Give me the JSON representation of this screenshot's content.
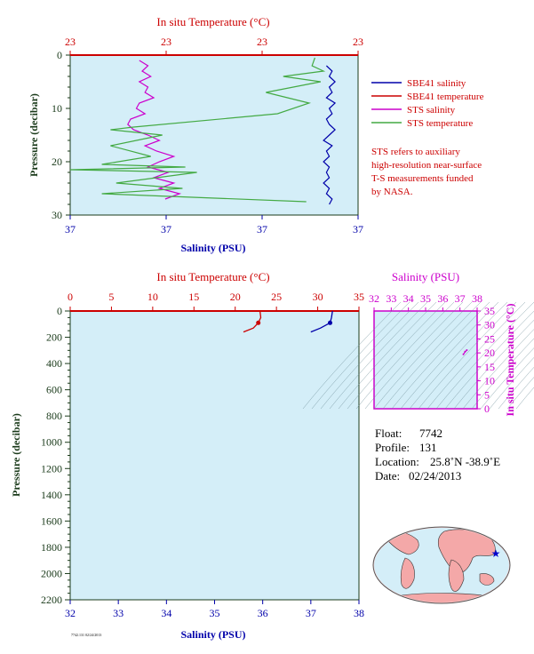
{
  "chart_data": [
    {
      "type": "line",
      "x_top_label": "In situ Temperature (°C)",
      "x_top_ticks": [
        "23",
        "23",
        "23",
        "23"
      ],
      "x_bottom_label": "Salinity (PSU)",
      "x_bottom_ticks": [
        "37",
        "37",
        "37",
        "37"
      ],
      "ylabel": "Pressure (decibar)",
      "y_ticks": [
        0,
        10,
        20,
        30
      ],
      "ylim": [
        0,
        30
      ],
      "grid": false,
      "legend_placement": "right",
      "series": [
        {
          "name": "SBE41 salinity",
          "color": "#0000aa",
          "points": [
            [
              0.89,
              2
            ],
            [
              0.91,
              3
            ],
            [
              0.9,
              4
            ],
            [
              0.92,
              5
            ],
            [
              0.9,
              6
            ],
            [
              0.91,
              7
            ],
            [
              0.89,
              8
            ],
            [
              0.92,
              9
            ],
            [
              0.9,
              10
            ],
            [
              0.91,
              11
            ],
            [
              0.89,
              12
            ],
            [
              0.9,
              13
            ],
            [
              0.92,
              14
            ],
            [
              0.9,
              15
            ],
            [
              0.88,
              16
            ],
            [
              0.91,
              17
            ],
            [
              0.89,
              18
            ],
            [
              0.9,
              19
            ],
            [
              0.88,
              20
            ],
            [
              0.9,
              21
            ],
            [
              0.89,
              22
            ],
            [
              0.9,
              23
            ],
            [
              0.88,
              24
            ],
            [
              0.9,
              25
            ],
            [
              0.89,
              26
            ],
            [
              0.91,
              27
            ],
            [
              0.9,
              28
            ]
          ]
        },
        {
          "name": "SBE41 temperature",
          "color": "#cc0000",
          "points": [
            [
              0.0,
              0.0
            ],
            [
              1.0,
              0.0
            ]
          ]
        },
        {
          "name": "STS salinity",
          "color": "#cc00cc",
          "points": [
            [
              0.24,
              1
            ],
            [
              0.27,
              2
            ],
            [
              0.25,
              3
            ],
            [
              0.28,
              4
            ],
            [
              0.24,
              5
            ],
            [
              0.27,
              6
            ],
            [
              0.26,
              7
            ],
            [
              0.29,
              8
            ],
            [
              0.24,
              9
            ],
            [
              0.23,
              10
            ],
            [
              0.26,
              11
            ],
            [
              0.21,
              12
            ],
            [
              0.2,
              13
            ],
            [
              0.22,
              14
            ],
            [
              0.27,
              15
            ],
            [
              0.31,
              16
            ],
            [
              0.26,
              17
            ],
            [
              0.3,
              18
            ],
            [
              0.36,
              19
            ],
            [
              0.31,
              20
            ],
            [
              0.27,
              21
            ],
            [
              0.34,
              22
            ],
            [
              0.29,
              23
            ],
            [
              0.36,
              24
            ],
            [
              0.31,
              25
            ],
            [
              0.38,
              26
            ],
            [
              0.33,
              27
            ]
          ]
        },
        {
          "name": "STS temperature",
          "color": "#44aa44",
          "points": [
            [
              0.85,
              0.5
            ],
            [
              0.84,
              2
            ],
            [
              0.88,
              3
            ],
            [
              0.74,
              4
            ],
            [
              0.87,
              5
            ],
            [
              0.68,
              7
            ],
            [
              0.83,
              9
            ],
            [
              0.72,
              11
            ],
            [
              0.22,
              13.5
            ],
            [
              0.14,
              14
            ],
            [
              0.32,
              15
            ],
            [
              0.14,
              17
            ],
            [
              0.28,
              19
            ],
            [
              0.11,
              20.5
            ],
            [
              0.4,
              21
            ],
            [
              0.0,
              21.5
            ],
            [
              0.44,
              22
            ],
            [
              0.16,
              24
            ],
            [
              0.39,
              25
            ],
            [
              0.11,
              26
            ],
            [
              0.82,
              27.5
            ]
          ]
        }
      ]
    },
    {
      "type": "line",
      "x_top_label": "In situ Temperature (°C)",
      "x_top_ticks": [
        "0",
        "5",
        "10",
        "15",
        "20",
        "25",
        "30",
        "35"
      ],
      "x_bottom_label": "Salinity (PSU)",
      "x_bottom_ticks": [
        "32",
        "33",
        "34",
        "35",
        "36",
        "37",
        "38"
      ],
      "ylabel": "Pressure (decibar)",
      "y_ticks": [
        0,
        200,
        400,
        600,
        800,
        1000,
        1200,
        1400,
        1600,
        1800,
        2000,
        2200
      ],
      "ylim": [
        0,
        2200
      ],
      "temperature_range": [
        0,
        35
      ],
      "salinity_range": [
        32,
        38
      ],
      "grid": false,
      "series": [
        {
          "name": "temperature",
          "color": "#cc0000",
          "points": [
            [
              23.0,
              0
            ],
            [
              23.1,
              50
            ],
            [
              22.8,
              90
            ],
            [
              22.2,
              130
            ],
            [
              21.0,
              160
            ]
          ]
        },
        {
          "name": "salinity",
          "color": "#0000aa",
          "points": [
            [
              37.45,
              0
            ],
            [
              37.43,
              50
            ],
            [
              37.4,
              90
            ],
            [
              37.2,
              130
            ],
            [
              37.0,
              160
            ]
          ]
        }
      ]
    },
    {
      "type": "scatter",
      "x_top_label": "Salinity (PSU)",
      "x_ticks": [
        "32",
        "33",
        "34",
        "35",
        "36",
        "37",
        "38"
      ],
      "ylabel": "In situ Temperature (°C)",
      "y_ticks": [
        "0",
        "5",
        "10",
        "15",
        "20",
        "25",
        "30",
        "35"
      ],
      "xlim": [
        32,
        38
      ],
      "ylim": [
        0,
        35
      ],
      "points": [
        [
          37.4,
          21
        ],
        [
          37.2,
          19.5
        ],
        [
          37.3,
          20.5
        ]
      ]
    }
  ],
  "info": {
    "float_label": "Float:",
    "float_value": "7742",
    "profile_label": "Profile:",
    "profile_value": "131",
    "location_label": "Location:",
    "location_value": "25.8˚N  -38.9˚E",
    "date_label": "Date:",
    "date_value": "02/24/2013"
  },
  "legend": {
    "items": [
      {
        "label": "SBE41 salinity",
        "color": "#0000aa"
      },
      {
        "label": "SBE41 temperature",
        "color": "#cc0000"
      },
      {
        "label": "STS salinity",
        "color": "#cc00cc"
      },
      {
        "label": "STS temperature",
        "color": "#44aa44"
      }
    ],
    "note": [
      "STS refers to auxiliary",
      "high-resolution near-surface",
      "T-S measurements funded",
      "by NASA."
    ]
  },
  "footer_note": "7742.131 02/24/2013",
  "colors": {
    "plot_bg": "#d4eef8",
    "temp": "#cc0000",
    "sal": "#0000aa",
    "mag": "#cc00cc",
    "axis_text": "#1a3a1a"
  }
}
